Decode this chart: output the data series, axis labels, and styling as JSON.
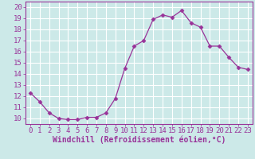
{
  "x": [
    0,
    1,
    2,
    3,
    4,
    5,
    6,
    7,
    8,
    9,
    10,
    11,
    12,
    13,
    14,
    15,
    16,
    17,
    18,
    19,
    20,
    21,
    22,
    23
  ],
  "y": [
    12.3,
    11.5,
    10.5,
    10.0,
    9.9,
    9.9,
    10.1,
    10.1,
    10.5,
    11.8,
    14.5,
    16.5,
    17.0,
    18.9,
    19.3,
    19.1,
    19.7,
    18.6,
    18.2,
    16.5,
    16.5,
    15.5,
    14.6,
    14.4
  ],
  "line_color": "#993399",
  "marker": "D",
  "marker_size": 2.5,
  "bg_color": "#cce9e8",
  "grid_color": "#ffffff",
  "xlabel": "Windchill (Refroidissement éolien,°C)",
  "xlabel_color": "#993399",
  "xlabel_fontsize": 7,
  "tick_label_color": "#993399",
  "tick_fontsize": 6.5,
  "xlim": [
    -0.5,
    23.5
  ],
  "ylim": [
    9.5,
    20.5
  ],
  "yticks": [
    10,
    11,
    12,
    13,
    14,
    15,
    16,
    17,
    18,
    19,
    20
  ],
  "xticks": [
    0,
    1,
    2,
    3,
    4,
    5,
    6,
    7,
    8,
    9,
    10,
    11,
    12,
    13,
    14,
    15,
    16,
    17,
    18,
    19,
    20,
    21,
    22,
    23
  ]
}
